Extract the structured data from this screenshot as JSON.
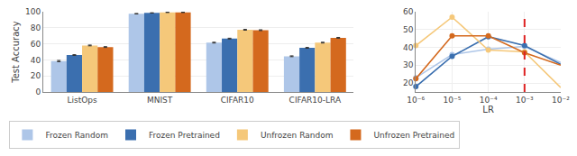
{
  "chart_data": [
    {
      "type": "bar",
      "categories": [
        "ListOps",
        "MNIST",
        "CIFAR10",
        "CIFAR10-LRA"
      ],
      "series": [
        {
          "name": "Frozen Random",
          "color": "#aec6e8",
          "values": [
            38.5,
            97.5,
            61.5,
            44.5
          ],
          "errors": [
            0.8,
            0.3,
            0.5,
            0.5
          ]
        },
        {
          "name": "Frozen Pretrained",
          "color": "#3b6faf",
          "values": [
            46.0,
            98.5,
            66.5,
            55.0
          ],
          "errors": [
            0.5,
            0.2,
            0.5,
            0.5
          ]
        },
        {
          "name": "Unfrozen Random",
          "color": "#f5c87a",
          "values": [
            58.0,
            99.2,
            77.5,
            61.5
          ],
          "errors": [
            0.5,
            0.2,
            0.5,
            0.5
          ]
        },
        {
          "name": "Unfrozen Pretrained",
          "color": "#d4691e",
          "values": [
            56.0,
            99.2,
            77.0,
            67.5
          ],
          "errors": [
            0.5,
            0.2,
            0.5,
            0.5
          ]
        }
      ],
      "ylabel": "Test Accuracy",
      "ylim": [
        0,
        100
      ],
      "yticks": [
        0,
        20,
        40,
        60,
        80,
        100
      ],
      "grid": "y",
      "legend": "bottom"
    },
    {
      "type": "line",
      "x": [
        1e-06,
        1e-05,
        0.0001,
        0.001,
        0.01
      ],
      "series": [
        {
          "name": "Frozen Random",
          "color": "#aec6e8",
          "values": [
            23.0,
            36.0,
            39.0,
            40.5,
            31.5
          ]
        },
        {
          "name": "Frozen Pretrained",
          "color": "#3b6faf",
          "values": [
            18.0,
            35.0,
            46.0,
            41.0,
            30.5
          ]
        },
        {
          "name": "Unfrozen Random",
          "color": "#f5c87a",
          "values": [
            41.0,
            57.0,
            38.5,
            37.5,
            17.5
          ]
        },
        {
          "name": "Unfrozen Pretrained",
          "color": "#d4691e",
          "values": [
            22.5,
            46.5,
            46.5,
            37.0,
            30.0
          ]
        }
      ],
      "xlabel": "LR",
      "log": "x",
      "xlim": [
        1e-06,
        0.01
      ],
      "xticks": [
        {
          "value": 1e-06,
          "label": "10⁻⁶"
        },
        {
          "value": 1e-05,
          "label": "10⁻⁵"
        },
        {
          "value": 0.0001,
          "label": "10⁻⁴"
        },
        {
          "value": 0.001,
          "label": "10⁻³"
        },
        {
          "value": 0.01,
          "label": "10⁻²"
        }
      ],
      "ylim": [
        15,
        60
      ],
      "yticks": [
        20,
        30,
        40,
        50,
        60
      ],
      "grid": true,
      "marker": "circle",
      "line_style": "solid",
      "vline": {
        "x": 0.001,
        "color": "#dd2222",
        "line_style": "dashed"
      }
    }
  ]
}
